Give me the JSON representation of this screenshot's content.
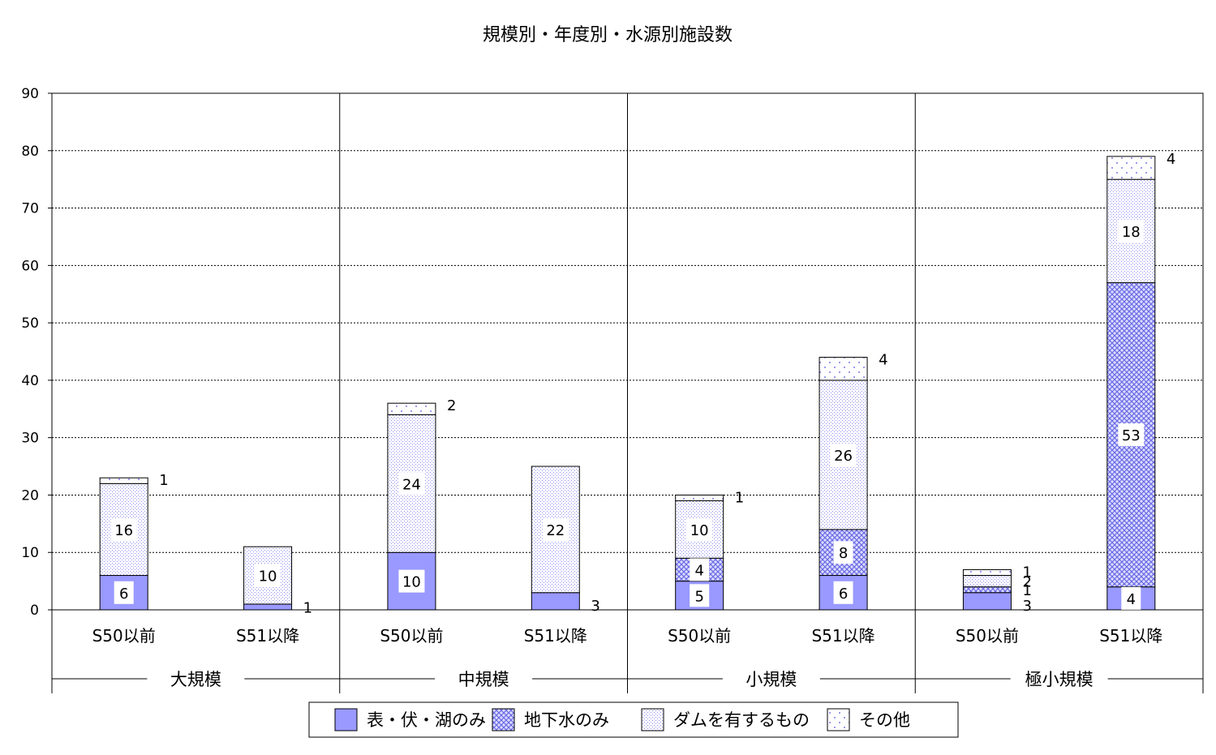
{
  "chart_data": {
    "type": "bar",
    "stacked": true,
    "title": "規模別・年度別・水源別施設数",
    "ylim": [
      0,
      90
    ],
    "yticks": [
      "0",
      "10",
      "20",
      "30",
      "40",
      "50",
      "60",
      "70",
      "80",
      "90"
    ],
    "grid": true,
    "legend_position": "bottom",
    "groups": [
      "大規模",
      "中規模",
      "小規模",
      "極小規模"
    ],
    "categories": [
      "S50以前",
      "S51以降",
      "S50以前",
      "S51以降",
      "S50以前",
      "S51以降",
      "S50以前",
      "S51以降"
    ],
    "series": [
      {
        "name": "表・伏・湖のみ",
        "values": [
          6,
          1,
          10,
          3,
          5,
          6,
          3,
          4
        ],
        "color": "#9999ff"
      },
      {
        "name": "地下水のみ",
        "values": [
          0,
          0,
          0,
          0,
          4,
          8,
          1,
          53
        ],
        "color": "#9999ff"
      },
      {
        "name": "ダムを有するもの",
        "values": [
          16,
          10,
          24,
          22,
          10,
          26,
          2,
          18
        ],
        "color": "#9999ff"
      },
      {
        "name": "その他",
        "values": [
          1,
          0,
          2,
          0,
          1,
          4,
          1,
          4
        ],
        "color": "#9999ff"
      }
    ],
    "data_labels": [
      [
        "6",
        "1",
        "10",
        "3",
        "5",
        "6",
        "3",
        "4"
      ],
      [
        "",
        "",
        "",
        "",
        "4",
        "8",
        "1",
        "53"
      ],
      [
        "16",
        "10",
        "24",
        "22",
        "10",
        "26",
        "2",
        "18"
      ],
      [
        "1",
        "",
        "2",
        "",
        "1",
        "4",
        "1",
        "4"
      ]
    ]
  }
}
